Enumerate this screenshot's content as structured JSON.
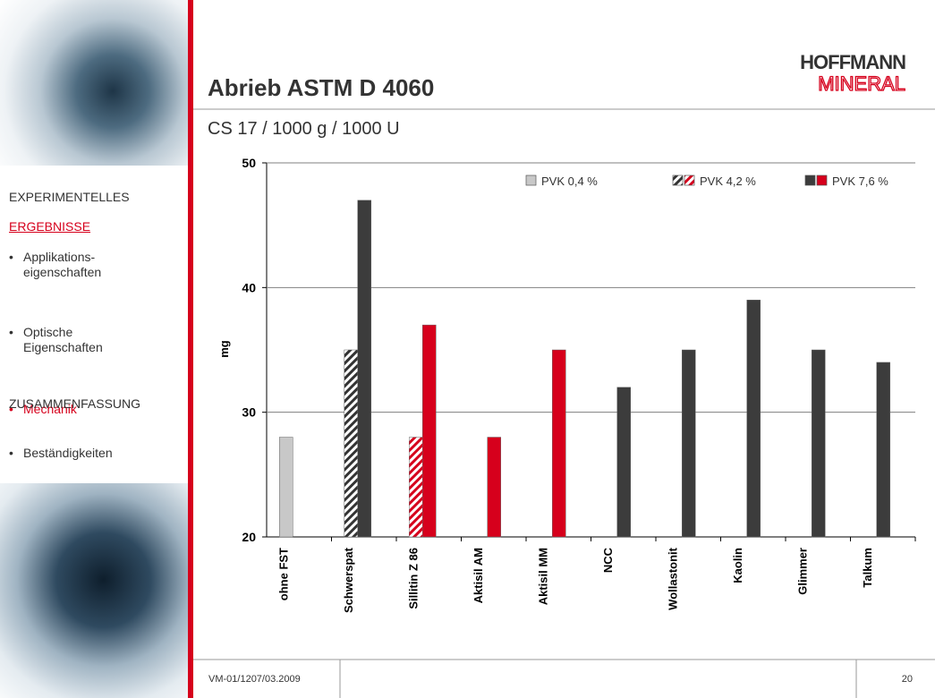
{
  "logo": {
    "line1": "HOFFMANN",
    "line2": "MINERAL"
  },
  "sidebar": {
    "items": [
      {
        "lines": [
          "EXPERIMENTELLES"
        ]
      },
      {
        "lines": [
          "ERGEBNISSE"
        ]
      },
      {
        "lines": [
          "Applikations-",
          "eigenschaften"
        ]
      },
      {
        "lines": [
          "Optische",
          "Eigenschaften"
        ]
      },
      {
        "lines": [
          "Mechanik"
        ]
      },
      {
        "lines": [
          "Beständigkeiten"
        ]
      },
      {
        "lines": [
          "ZUSAMMENFASSUNG"
        ]
      }
    ]
  },
  "footer": {
    "code": "VM-01/1207/03.2009",
    "page": "20"
  },
  "chart_data": {
    "type": "bar",
    "title": "Abrieb ASTM D 4060",
    "subtitle": "CS 17 / 1000 g / 1000 U",
    "y_label": "mg",
    "categories": [
      "ohne FST",
      "Schwerspat",
      "Sillitin Z 86",
      "Aktisil AM",
      "Aktisil MM",
      "NCC",
      "Wollastonit",
      "Kaolin",
      "Glimmer",
      "Talkum"
    ],
    "series": [
      {
        "name": "PVK 0,4 %",
        "color": "#c8c8c8",
        "values": [
          28,
          null,
          null,
          null,
          null,
          null,
          null,
          null,
          null,
          null
        ]
      },
      {
        "name": "PVK 4,2 %",
        "pattern": "hatch",
        "colors": [
          "#333333",
          "#333333",
          "#d6001c",
          "#333333",
          "#333333",
          "#333333",
          "#333333",
          "#333333",
          "#333333",
          "#333333"
        ],
        "values": [
          null,
          35,
          28,
          null,
          null,
          null,
          null,
          null,
          null,
          null
        ]
      },
      {
        "name": "PVK 7,6 %",
        "colors": [
          "#3c3c3c",
          "#3c3c3c",
          "#d6001c",
          "#d6001c",
          "#d6001c",
          "#3c3c3c",
          "#3c3c3c",
          "#3c3c3c",
          "#3c3c3c",
          "#3c3c3c"
        ],
        "values": [
          null,
          47,
          37,
          28,
          35,
          32,
          35,
          39,
          35,
          34
        ]
      }
    ],
    "ylim": [
      20,
      50
    ],
    "yticks": [
      20,
      30,
      40,
      50
    ],
    "grid": true,
    "legend": "top"
  }
}
